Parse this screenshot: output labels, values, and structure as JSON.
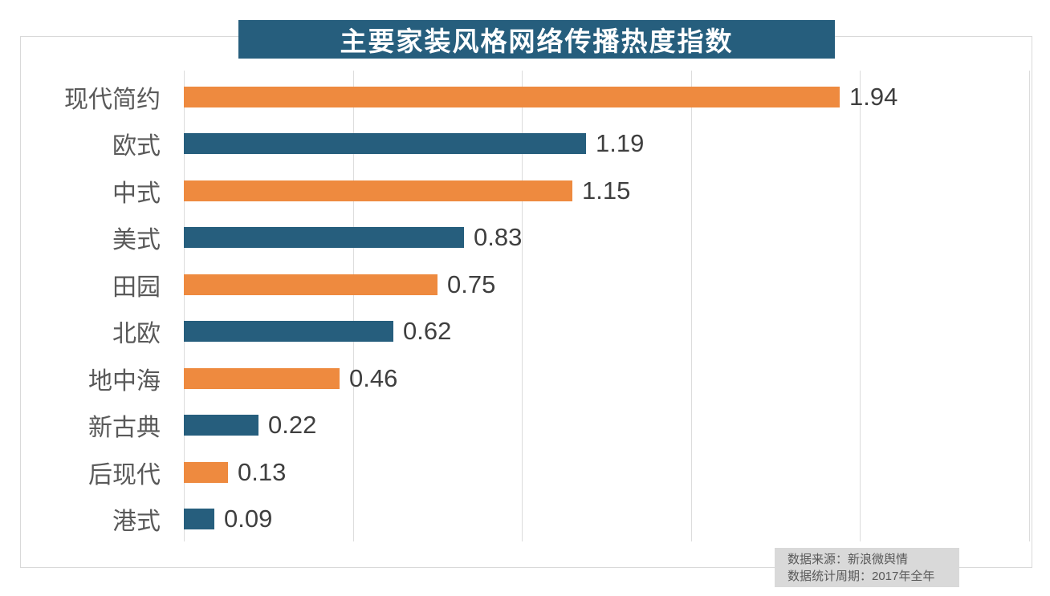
{
  "title": "主要家装风格网络传播热度指数",
  "source": {
    "line1": "数据来源：新浪微舆情",
    "line2": "数据统计周期：2017年全年"
  },
  "colors": {
    "orange": "#EE8A3F",
    "teal": "#265E7D",
    "title_bg": "#265E7D",
    "title_text": "#FFFFFF",
    "grid": "#DCDCDC",
    "frame_border": "#D9D9D9",
    "category_label": "#595959",
    "value_label": "#3F3F3F",
    "source_bg": "#D9D9D9",
    "source_text": "#595959"
  },
  "chart_data": {
    "type": "bar",
    "orientation": "horizontal",
    "title": "主要家装风格网络传播热度指数",
    "categories": [
      "现代简约",
      "欧式",
      "中式",
      "美式",
      "田园",
      "北欧",
      "地中海",
      "新古典",
      "后现代",
      "港式"
    ],
    "values": [
      1.94,
      1.19,
      1.15,
      0.83,
      0.75,
      0.62,
      0.46,
      0.22,
      0.13,
      0.09
    ],
    "value_labels": [
      "1.94",
      "1.19",
      "1.15",
      "0.83",
      "0.75",
      "0.62",
      "0.46",
      "0.22",
      "0.13",
      "0.09"
    ],
    "bar_colors": [
      "#EE8A3F",
      "#265E7D",
      "#EE8A3F",
      "#265E7D",
      "#EE8A3F",
      "#265E7D",
      "#EE8A3F",
      "#265E7D",
      "#EE8A3F",
      "#265E7D"
    ],
    "xlabel": "",
    "ylabel": "",
    "xlim": [
      0,
      2.5
    ],
    "grid_interval": 0.5,
    "grid": true,
    "legend": "none",
    "annotations": [
      "数据来源：新浪微舆情",
      "数据统计周期：2017年全年"
    ]
  }
}
